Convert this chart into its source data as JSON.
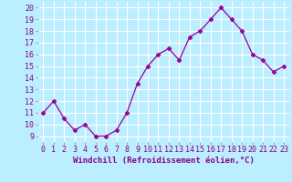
{
  "x": [
    0,
    1,
    2,
    3,
    4,
    5,
    6,
    7,
    8,
    9,
    10,
    11,
    12,
    13,
    14,
    15,
    16,
    17,
    18,
    19,
    20,
    21,
    22,
    23
  ],
  "y": [
    11,
    12,
    10.5,
    9.5,
    10,
    9,
    9,
    9.5,
    11,
    13.5,
    15,
    16,
    16.5,
    15.5,
    17.5,
    18,
    19,
    20,
    19,
    18,
    16,
    15.5,
    14.5,
    15
  ],
  "line_color": "#990099",
  "marker": "D",
  "marker_size": 2.5,
  "bg_color": "#bbeeff",
  "grid_color": "#ffffff",
  "xlabel": "Windchill (Refroidissement éolien,°C)",
  "ylabel_ticks": [
    9,
    10,
    11,
    12,
    13,
    14,
    15,
    16,
    17,
    18,
    19,
    20
  ],
  "xlim": [
    -0.5,
    23.5
  ],
  "ylim": [
    8.5,
    20.5
  ],
  "xticks": [
    0,
    1,
    2,
    3,
    4,
    5,
    6,
    7,
    8,
    9,
    10,
    11,
    12,
    13,
    14,
    15,
    16,
    17,
    18,
    19,
    20,
    21,
    22,
    23
  ],
  "xlabel_fontsize": 6.5,
  "tick_fontsize": 6,
  "tick_color": "#880088",
  "label_color": "#880088"
}
